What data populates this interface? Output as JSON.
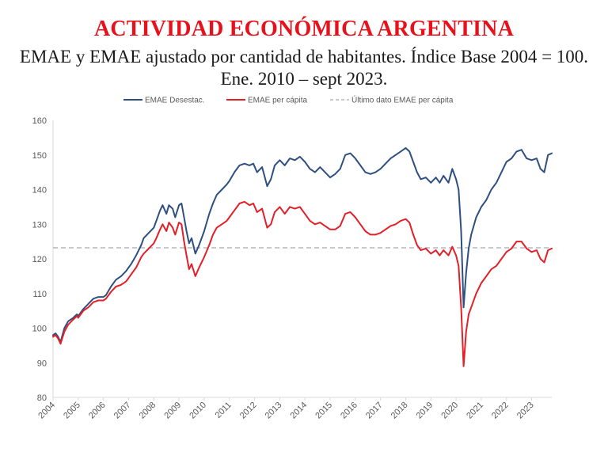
{
  "chart_data": {
    "type": "line",
    "title": "ACTIVIDAD ECONÓMICA ARGENTINA",
    "subtitle": "EMAE y EMAE ajustado por cantidad de habitantes. Índice Base 2004 = 100. Ene. 2010 – sept 2023.",
    "xlabel": "",
    "ylabel": "",
    "ylim": [
      80,
      160
    ],
    "yticks": [
      "80",
      "90",
      "100",
      "110",
      "120",
      "130",
      "140",
      "150",
      "160"
    ],
    "xticks": [
      "2004",
      "2005",
      "2006",
      "2007",
      "2008",
      "2009",
      "2010",
      "2011",
      "2012",
      "2013",
      "2014",
      "2015",
      "2016",
      "2017",
      "2018",
      "2019",
      "2020",
      "2021",
      "2022",
      "2023"
    ],
    "xlim": [
      2004.0,
      2023.8
    ],
    "legend_position": "top",
    "colors": {
      "emae": "#2e4f80",
      "per_capita": "#e32028",
      "reference": "#a6a6b8",
      "axis": "#d9d9d9"
    },
    "series": [
      {
        "name": "EMAE Desestac.",
        "style": "solid",
        "points": [
          [
            2004.0,
            98
          ],
          [
            2004.1,
            98.5
          ],
          [
            2004.2,
            97.5
          ],
          [
            2004.3,
            96
          ],
          [
            2004.45,
            100
          ],
          [
            2004.6,
            102
          ],
          [
            2004.8,
            103
          ],
          [
            2004.95,
            104
          ],
          [
            2005.0,
            103.5
          ],
          [
            2005.2,
            105.5
          ],
          [
            2005.4,
            107
          ],
          [
            2005.6,
            108.5
          ],
          [
            2005.8,
            109
          ],
          [
            2006.0,
            109
          ],
          [
            2006.1,
            109.5
          ],
          [
            2006.3,
            112
          ],
          [
            2006.5,
            114
          ],
          [
            2006.7,
            115
          ],
          [
            2006.9,
            116.5
          ],
          [
            2007.0,
            117.5
          ],
          [
            2007.1,
            118.5
          ],
          [
            2007.3,
            121
          ],
          [
            2007.5,
            124
          ],
          [
            2007.6,
            126
          ],
          [
            2007.8,
            127.5
          ],
          [
            2008.0,
            129
          ],
          [
            2008.1,
            131
          ],
          [
            2008.25,
            134
          ],
          [
            2008.35,
            135.5
          ],
          [
            2008.5,
            133
          ],
          [
            2008.6,
            135.5
          ],
          [
            2008.75,
            134.5
          ],
          [
            2008.85,
            132
          ],
          [
            2009.0,
            135.5
          ],
          [
            2009.1,
            136
          ],
          [
            2009.2,
            132
          ],
          [
            2009.3,
            128
          ],
          [
            2009.4,
            124.5
          ],
          [
            2009.5,
            126
          ],
          [
            2009.65,
            121.5
          ],
          [
            2009.8,
            124
          ],
          [
            2010.0,
            128
          ],
          [
            2010.2,
            133
          ],
          [
            2010.35,
            136
          ],
          [
            2010.5,
            138.5
          ],
          [
            2010.7,
            140
          ],
          [
            2010.9,
            141.5
          ],
          [
            2011.0,
            142.5
          ],
          [
            2011.2,
            145
          ],
          [
            2011.4,
            147
          ],
          [
            2011.6,
            147.5
          ],
          [
            2011.8,
            147
          ],
          [
            2011.95,
            147.5
          ],
          [
            2012.1,
            145
          ],
          [
            2012.3,
            146.5
          ],
          [
            2012.5,
            141
          ],
          [
            2012.65,
            143
          ],
          [
            2012.8,
            147
          ],
          [
            2013.0,
            148.5
          ],
          [
            2013.2,
            147
          ],
          [
            2013.4,
            149
          ],
          [
            2013.6,
            148.5
          ],
          [
            2013.8,
            149.5
          ],
          [
            2014.0,
            148
          ],
          [
            2014.2,
            146
          ],
          [
            2014.4,
            145
          ],
          [
            2014.6,
            146.5
          ],
          [
            2014.8,
            145
          ],
          [
            2015.0,
            143.5
          ],
          [
            2015.2,
            144.5
          ],
          [
            2015.4,
            146
          ],
          [
            2015.6,
            150
          ],
          [
            2015.8,
            150.5
          ],
          [
            2016.0,
            149
          ],
          [
            2016.2,
            147
          ],
          [
            2016.4,
            145
          ],
          [
            2016.6,
            144.5
          ],
          [
            2016.8,
            145
          ],
          [
            2017.0,
            146
          ],
          [
            2017.2,
            147.5
          ],
          [
            2017.4,
            149
          ],
          [
            2017.6,
            150
          ],
          [
            2017.8,
            151
          ],
          [
            2018.0,
            152
          ],
          [
            2018.15,
            151
          ],
          [
            2018.3,
            148
          ],
          [
            2018.45,
            145
          ],
          [
            2018.6,
            143
          ],
          [
            2018.8,
            143.5
          ],
          [
            2019.0,
            142
          ],
          [
            2019.2,
            143.5
          ],
          [
            2019.35,
            142
          ],
          [
            2019.5,
            144
          ],
          [
            2019.7,
            142
          ],
          [
            2019.85,
            146
          ],
          [
            2020.0,
            143
          ],
          [
            2020.1,
            140
          ],
          [
            2020.2,
            128
          ],
          [
            2020.3,
            106
          ],
          [
            2020.4,
            116
          ],
          [
            2020.5,
            123
          ],
          [
            2020.6,
            127
          ],
          [
            2020.8,
            132
          ],
          [
            2021.0,
            135
          ],
          [
            2021.2,
            137
          ],
          [
            2021.4,
            140
          ],
          [
            2021.6,
            142
          ],
          [
            2021.8,
            145
          ],
          [
            2022.0,
            148
          ],
          [
            2022.2,
            149
          ],
          [
            2022.4,
            151
          ],
          [
            2022.6,
            151.5
          ],
          [
            2022.8,
            149
          ],
          [
            2023.0,
            148.5
          ],
          [
            2023.2,
            149
          ],
          [
            2023.35,
            146
          ],
          [
            2023.5,
            145
          ],
          [
            2023.65,
            150
          ],
          [
            2023.8,
            150.5
          ]
        ]
      },
      {
        "name": "EMAE per cápita",
        "style": "solid",
        "points": [
          [
            2004.0,
            97.5
          ],
          [
            2004.1,
            98
          ],
          [
            2004.2,
            97
          ],
          [
            2004.3,
            95.5
          ],
          [
            2004.45,
            99
          ],
          [
            2004.6,
            101
          ],
          [
            2004.8,
            102.5
          ],
          [
            2004.95,
            103.5
          ],
          [
            2005.0,
            103
          ],
          [
            2005.2,
            105
          ],
          [
            2005.4,
            106
          ],
          [
            2005.6,
            107.5
          ],
          [
            2005.8,
            108
          ],
          [
            2006.0,
            108
          ],
          [
            2006.1,
            108.5
          ],
          [
            2006.3,
            110.5
          ],
          [
            2006.5,
            112
          ],
          [
            2006.7,
            112.5
          ],
          [
            2006.9,
            113.5
          ],
          [
            2007.0,
            114.5
          ],
          [
            2007.1,
            115.5
          ],
          [
            2007.3,
            117.5
          ],
          [
            2007.5,
            120.5
          ],
          [
            2007.6,
            121.5
          ],
          [
            2007.8,
            123
          ],
          [
            2008.0,
            124.5
          ],
          [
            2008.1,
            126
          ],
          [
            2008.25,
            128.5
          ],
          [
            2008.35,
            130
          ],
          [
            2008.5,
            128
          ],
          [
            2008.6,
            130.5
          ],
          [
            2008.75,
            129
          ],
          [
            2008.85,
            127
          ],
          [
            2009.0,
            130.5
          ],
          [
            2009.1,
            130
          ],
          [
            2009.2,
            125
          ],
          [
            2009.3,
            121
          ],
          [
            2009.4,
            117
          ],
          [
            2009.5,
            118.5
          ],
          [
            2009.65,
            115
          ],
          [
            2009.8,
            117.5
          ],
          [
            2010.0,
            120.5
          ],
          [
            2010.2,
            124
          ],
          [
            2010.35,
            127
          ],
          [
            2010.5,
            129
          ],
          [
            2010.7,
            130
          ],
          [
            2010.9,
            131
          ],
          [
            2011.0,
            132
          ],
          [
            2011.2,
            134
          ],
          [
            2011.4,
            136
          ],
          [
            2011.6,
            136.5
          ],
          [
            2011.8,
            135.5
          ],
          [
            2011.95,
            136
          ],
          [
            2012.1,
            133.5
          ],
          [
            2012.3,
            134.5
          ],
          [
            2012.5,
            129
          ],
          [
            2012.65,
            130
          ],
          [
            2012.8,
            133.5
          ],
          [
            2013.0,
            135
          ],
          [
            2013.2,
            133
          ],
          [
            2013.4,
            135
          ],
          [
            2013.6,
            134.5
          ],
          [
            2013.8,
            135
          ],
          [
            2014.0,
            133
          ],
          [
            2014.2,
            131
          ],
          [
            2014.4,
            130
          ],
          [
            2014.6,
            130.5
          ],
          [
            2014.8,
            129.5
          ],
          [
            2015.0,
            128.5
          ],
          [
            2015.2,
            128.5
          ],
          [
            2015.4,
            129.5
          ],
          [
            2015.6,
            133
          ],
          [
            2015.8,
            133.5
          ],
          [
            2016.0,
            132
          ],
          [
            2016.2,
            130
          ],
          [
            2016.4,
            128
          ],
          [
            2016.6,
            127
          ],
          [
            2016.8,
            127
          ],
          [
            2017.0,
            127.5
          ],
          [
            2017.2,
            128.5
          ],
          [
            2017.4,
            129.5
          ],
          [
            2017.6,
            130
          ],
          [
            2017.8,
            131
          ],
          [
            2018.0,
            131.5
          ],
          [
            2018.15,
            130.5
          ],
          [
            2018.3,
            127
          ],
          [
            2018.45,
            124
          ],
          [
            2018.6,
            122.5
          ],
          [
            2018.8,
            123
          ],
          [
            2019.0,
            121.5
          ],
          [
            2019.2,
            122.5
          ],
          [
            2019.35,
            121
          ],
          [
            2019.5,
            122.5
          ],
          [
            2019.7,
            121
          ],
          [
            2019.85,
            123.5
          ],
          [
            2020.0,
            121
          ],
          [
            2020.1,
            118
          ],
          [
            2020.2,
            106
          ],
          [
            2020.3,
            89
          ],
          [
            2020.4,
            99
          ],
          [
            2020.5,
            104
          ],
          [
            2020.6,
            106
          ],
          [
            2020.8,
            110
          ],
          [
            2021.0,
            113
          ],
          [
            2021.2,
            115
          ],
          [
            2021.4,
            117
          ],
          [
            2021.6,
            118
          ],
          [
            2021.8,
            120
          ],
          [
            2022.0,
            122
          ],
          [
            2022.2,
            123
          ],
          [
            2022.4,
            125
          ],
          [
            2022.6,
            125
          ],
          [
            2022.8,
            123
          ],
          [
            2023.0,
            122
          ],
          [
            2023.2,
            122.5
          ],
          [
            2023.35,
            120
          ],
          [
            2023.5,
            119
          ],
          [
            2023.65,
            122.5
          ],
          [
            2023.8,
            123
          ]
        ]
      },
      {
        "name": "Último dato EMAE per cápita",
        "style": "dashed",
        "value": 123.2
      }
    ]
  }
}
